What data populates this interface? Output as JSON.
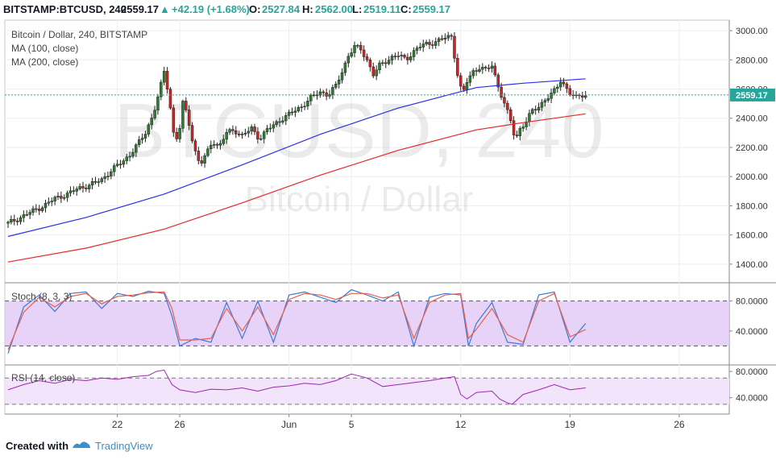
{
  "header": {
    "symbol": "BITSTAMP:BTCUSD, 240",
    "last": "2559.17",
    "change_arrow": "▲",
    "change": "+42.19 (+1.68%)",
    "o_label": "O:",
    "o_value": "2527.84",
    "h_label": "H:",
    "h_value": "2562.00",
    "l_label": "L:",
    "l_value": "2519.11",
    "c_label": "C:",
    "c_value": "2559.17",
    "up_color": "#26a69a"
  },
  "watermark": {
    "big": "BTCUSD, 240",
    "small": "Bitcoin / Dollar"
  },
  "footer": {
    "created": "Created with",
    "brand": "TradingView",
    "logo_icon": "tradingview-logo-icon"
  },
  "chart_data": [
    {
      "type": "candlestick",
      "panel": "price",
      "title": "Bitcoin / Dollar, 240, BITSTAMP",
      "legend": [
        "MA (100, close)",
        "MA (200, close)"
      ],
      "ylim": [
        1300,
        3050
      ],
      "y_ticks": [
        1400,
        1600,
        1800,
        2000,
        2200,
        2400,
        2600,
        2800,
        3000
      ],
      "y_tick_labels": [
        "1400.00",
        "1600.00",
        "1800.00",
        "2000.00",
        "2200.00",
        "2400.00",
        "2600.00",
        "2800.00",
        "3000.00"
      ],
      "x_ticks": [
        {
          "x": 7,
          "label": "22"
        },
        {
          "x": 11,
          "label": "26"
        },
        {
          "x": 18,
          "label": "Jun"
        },
        {
          "x": 22,
          "label": "5"
        },
        {
          "x": 29,
          "label": "12"
        },
        {
          "x": 36,
          "label": "19"
        },
        {
          "x": 43,
          "label": "26"
        }
      ],
      "xlim": [
        0,
        46
      ],
      "last_price": 2559.17,
      "last_price_label": "2559.17",
      "close_path": [
        [
          0,
          1680
        ],
        [
          0.8,
          1720
        ],
        [
          1.5,
          1760
        ],
        [
          2.3,
          1800
        ],
        [
          3,
          1850
        ],
        [
          3.8,
          1880
        ],
        [
          4.5,
          1920
        ],
        [
          5.2,
          1940
        ],
        [
          6,
          1980
        ],
        [
          6.7,
          2050
        ],
        [
          7.3,
          2100
        ],
        [
          7.8,
          2150
        ],
        [
          8.3,
          2220
        ],
        [
          8.8,
          2300
        ],
        [
          9.3,
          2430
        ],
        [
          9.7,
          2580
        ],
        [
          10,
          2720
        ],
        [
          10.3,
          2560
        ],
        [
          10.6,
          2300
        ],
        [
          10.9,
          2250
        ],
        [
          11.2,
          2500
        ],
        [
          11.5,
          2420
        ],
        [
          11.9,
          2200
        ],
        [
          12.3,
          2080
        ],
        [
          12.7,
          2150
        ],
        [
          13.1,
          2250
        ],
        [
          13.5,
          2200
        ],
        [
          14,
          2300
        ],
        [
          14.5,
          2320
        ],
        [
          15,
          2280
        ],
        [
          15.6,
          2330
        ],
        [
          16.1,
          2260
        ],
        [
          16.6,
          2320
        ],
        [
          17.1,
          2360
        ],
        [
          17.6,
          2400
        ],
        [
          18.2,
          2440
        ],
        [
          18.8,
          2480
        ],
        [
          19.4,
          2540
        ],
        [
          20,
          2580
        ],
        [
          20.5,
          2560
        ],
        [
          21,
          2620
        ],
        [
          21.4,
          2720
        ],
        [
          21.8,
          2830
        ],
        [
          22.2,
          2890
        ],
        [
          22.6,
          2870
        ],
        [
          23,
          2800
        ],
        [
          23.4,
          2700
        ],
        [
          23.8,
          2760
        ],
        [
          24.2,
          2790
        ],
        [
          24.6,
          2820
        ],
        [
          25,
          2830
        ],
        [
          25.5,
          2800
        ],
        [
          26,
          2860
        ],
        [
          26.5,
          2900
        ],
        [
          27,
          2910
        ],
        [
          27.5,
          2930
        ],
        [
          28,
          2950
        ],
        [
          28.4,
          2960
        ],
        [
          28.8,
          2700
        ],
        [
          29.1,
          2560
        ],
        [
          29.4,
          2650
        ],
        [
          29.8,
          2720
        ],
        [
          30.2,
          2750
        ],
        [
          30.6,
          2730
        ],
        [
          31,
          2760
        ],
        [
          31.4,
          2620
        ],
        [
          31.8,
          2500
        ],
        [
          32.2,
          2380
        ],
        [
          32.5,
          2250
        ],
        [
          32.8,
          2330
        ],
        [
          33.2,
          2380
        ],
        [
          33.6,
          2450
        ],
        [
          34,
          2480
        ],
        [
          34.4,
          2530
        ],
        [
          34.8,
          2560
        ],
        [
          35.1,
          2600
        ],
        [
          35.4,
          2660
        ],
        [
          35.7,
          2620
        ],
        [
          36,
          2570
        ],
        [
          36.4,
          2540
        ],
        [
          36.7,
          2560
        ],
        [
          37,
          2559
        ]
      ],
      "series": [
        {
          "name": "MA (100, close)",
          "color": "#2b2ef0",
          "points": [
            [
              0,
              1590
            ],
            [
              5,
              1720
            ],
            [
              10,
              1880
            ],
            [
              15,
              2080
            ],
            [
              20,
              2290
            ],
            [
              25,
              2470
            ],
            [
              30,
              2610
            ],
            [
              33,
              2640
            ],
            [
              37,
              2670
            ]
          ]
        },
        {
          "name": "MA (200, close)",
          "color": "#e8282a",
          "points": [
            [
              0,
              1415
            ],
            [
              5,
              1510
            ],
            [
              10,
              1640
            ],
            [
              15,
              1820
            ],
            [
              20,
              2010
            ],
            [
              25,
              2180
            ],
            [
              30,
              2320
            ],
            [
              33,
              2370
            ],
            [
              37,
              2430
            ]
          ]
        }
      ]
    },
    {
      "type": "line",
      "panel": "stoch",
      "title": "Stoch (8, 3, 3)",
      "ylim": [
        0,
        100
      ],
      "y_ticks": [
        40,
        80
      ],
      "y_tick_labels": [
        "40.0000",
        "80.0000"
      ],
      "bands": [
        20,
        80
      ],
      "series": [
        {
          "name": "%K",
          "color": "#3c78d8",
          "points": [
            [
              0,
              10
            ],
            [
              1,
              72
            ],
            [
              2,
              88
            ],
            [
              3,
              66
            ],
            [
              4,
              90
            ],
            [
              5,
              92
            ],
            [
              6,
              70
            ],
            [
              7,
              90
            ],
            [
              8,
              86
            ],
            [
              9,
              93
            ],
            [
              10,
              90
            ],
            [
              10.5,
              60
            ],
            [
              11,
              20
            ],
            [
              12,
              30
            ],
            [
              13,
              25
            ],
            [
              14,
              78
            ],
            [
              15,
              30
            ],
            [
              16,
              80
            ],
            [
              17,
              25
            ],
            [
              18,
              88
            ],
            [
              19,
              92
            ],
            [
              20,
              85
            ],
            [
              21,
              78
            ],
            [
              22,
              95
            ],
            [
              23,
              88
            ],
            [
              24,
              80
            ],
            [
              25,
              92
            ],
            [
              26,
              20
            ],
            [
              27,
              85
            ],
            [
              28,
              90
            ],
            [
              29,
              88
            ],
            [
              29.5,
              20
            ],
            [
              30,
              50
            ],
            [
              31,
              78
            ],
            [
              32,
              25
            ],
            [
              33,
              22
            ],
            [
              34,
              88
            ],
            [
              35,
              92
            ],
            [
              36,
              25
            ],
            [
              37,
              50
            ]
          ]
        },
        {
          "name": "%D",
          "color": "#e8604c",
          "points": [
            [
              0,
              15
            ],
            [
              1,
              65
            ],
            [
              2,
              85
            ],
            [
              3,
              72
            ],
            [
              4,
              86
            ],
            [
              5,
              90
            ],
            [
              6,
              76
            ],
            [
              7,
              86
            ],
            [
              8,
              88
            ],
            [
              9,
              91
            ],
            [
              10,
              92
            ],
            [
              10.5,
              70
            ],
            [
              11,
              28
            ],
            [
              12,
              28
            ],
            [
              13,
              30
            ],
            [
              14,
              70
            ],
            [
              15,
              40
            ],
            [
              16,
              72
            ],
            [
              17,
              35
            ],
            [
              18,
              82
            ],
            [
              19,
              90
            ],
            [
              20,
              88
            ],
            [
              21,
              82
            ],
            [
              22,
              90
            ],
            [
              23,
              90
            ],
            [
              24,
              84
            ],
            [
              25,
              88
            ],
            [
              26,
              30
            ],
            [
              27,
              78
            ],
            [
              28,
              88
            ],
            [
              29,
              90
            ],
            [
              29.5,
              30
            ],
            [
              30,
              42
            ],
            [
              31,
              70
            ],
            [
              32,
              35
            ],
            [
              33,
              25
            ],
            [
              34,
              80
            ],
            [
              35,
              90
            ],
            [
              36,
              32
            ],
            [
              37,
              42
            ]
          ]
        }
      ]
    },
    {
      "type": "line",
      "panel": "rsi",
      "title": "RSI (14, close)",
      "ylim": [
        20,
        85
      ],
      "y_ticks": [
        40,
        80
      ],
      "y_tick_labels": [
        "40.0000",
        "80.0000"
      ],
      "bands": [
        30,
        70
      ],
      "series": [
        {
          "name": "RSI",
          "color": "#9c27b0",
          "points": [
            [
              0,
              52
            ],
            [
              1,
              60
            ],
            [
              2,
              66
            ],
            [
              3,
              62
            ],
            [
              4,
              68
            ],
            [
              5,
              66
            ],
            [
              6,
              70
            ],
            [
              7,
              68
            ],
            [
              8,
              72
            ],
            [
              9,
              74
            ],
            [
              9.5,
              80
            ],
            [
              10,
              82
            ],
            [
              10.5,
              60
            ],
            [
              11,
              52
            ],
            [
              12,
              48
            ],
            [
              13,
              53
            ],
            [
              14,
              52
            ],
            [
              15,
              55
            ],
            [
              16,
              50
            ],
            [
              17,
              56
            ],
            [
              18,
              58
            ],
            [
              19,
              62
            ],
            [
              20,
              60
            ],
            [
              21,
              66
            ],
            [
              22,
              76
            ],
            [
              23,
              70
            ],
            [
              24,
              57
            ],
            [
              25,
              60
            ],
            [
              26,
              63
            ],
            [
              27,
              66
            ],
            [
              28,
              70
            ],
            [
              28.6,
              72
            ],
            [
              29,
              45
            ],
            [
              29.4,
              38
            ],
            [
              30,
              48
            ],
            [
              31,
              50
            ],
            [
              31.5,
              38
            ],
            [
              32,
              32
            ],
            [
              32.3,
              30
            ],
            [
              33,
              45
            ],
            [
              34,
              52
            ],
            [
              35,
              60
            ],
            [
              36,
              52
            ],
            [
              37,
              55
            ]
          ]
        }
      ]
    }
  ]
}
